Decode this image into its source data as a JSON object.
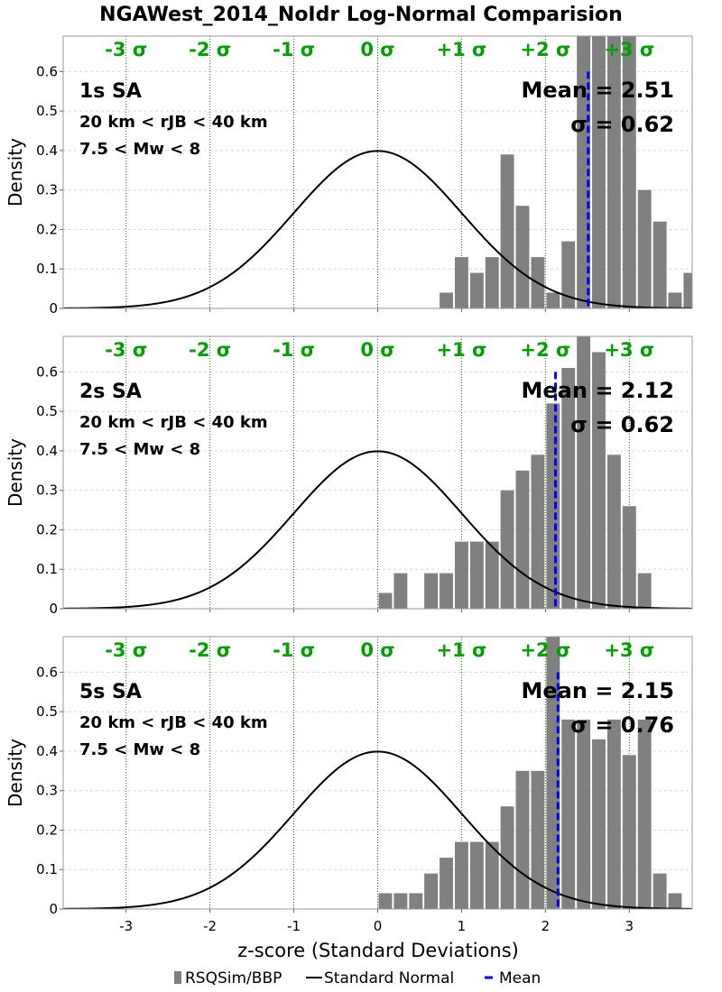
{
  "title": "NGAWest_2014_NoIdr Log-Normal Comparision",
  "sigma_labels": [
    "-3 σ",
    "-2 σ",
    "-1 σ",
    "0 σ",
    "+1 σ",
    "+2 σ",
    "+3 σ"
  ],
  "colors": {
    "bars": "#808080",
    "normal_curve": "#000000",
    "mean_line": "#0000ff",
    "sigma_lines": "#008000",
    "sigma_text": "#00a000",
    "grid": "#d8d8d8"
  },
  "legend": {
    "position": "bottom-center",
    "items": [
      {
        "label": "RSQSim/BBP",
        "kind": "bar",
        "color": "#808080"
      },
      {
        "label": "Standard Normal",
        "kind": "line",
        "color": "#000000"
      },
      {
        "label": "Mean",
        "kind": "dash",
        "color": "#0000ff"
      }
    ]
  },
  "chart_data": [
    {
      "type": "bar",
      "title": "1s SA",
      "annotations": [
        "20 km < rJB < 40 km",
        "7.5 < Mw < 8"
      ],
      "mean_label": "Mean = 2.51",
      "sigma_label": "σ = 0.62",
      "mean": 2.51,
      "ylabel": "Density",
      "xlabel": "",
      "xlim": [
        -3.75,
        3.75
      ],
      "ylim": [
        0,
        0.69
      ],
      "yticks": [
        "0",
        "0.1",
        "0.2",
        "0.3",
        "0.4",
        "0.5",
        "0.6"
      ],
      "grid": true,
      "bin_width": 0.1818,
      "bin_centers": [
        0.818,
        1.0,
        1.182,
        1.364,
        1.545,
        1.727,
        1.909,
        2.091,
        2.273,
        2.455,
        2.636,
        2.818,
        3.0,
        3.182,
        3.364,
        3.545,
        3.727
      ],
      "values": [
        0.04,
        0.13,
        0.09,
        0.13,
        0.39,
        0.26,
        0.13,
        0.04,
        0.17,
        0.69,
        0.69,
        0.69,
        0.69,
        0.3,
        0.22,
        0.04,
        0.09
      ]
    },
    {
      "type": "bar",
      "title": "2s SA",
      "annotations": [
        "20 km < rJB < 40 km",
        "7.5 < Mw < 8"
      ],
      "mean_label": "Mean = 2.12",
      "sigma_label": "σ = 0.62",
      "mean": 2.12,
      "ylabel": "Density",
      "xlabel": "",
      "xlim": [
        -3.75,
        3.75
      ],
      "ylim": [
        0,
        0.69
      ],
      "yticks": [
        "0",
        "0.1",
        "0.2",
        "0.3",
        "0.4",
        "0.5",
        "0.6"
      ],
      "grid": true,
      "bin_width": 0.1818,
      "bin_centers": [
        0.091,
        0.273,
        0.636,
        0.818,
        1.0,
        1.182,
        1.364,
        1.545,
        1.727,
        1.909,
        2.091,
        2.273,
        2.455,
        2.636,
        2.818,
        3.0,
        3.182
      ],
      "values": [
        0.04,
        0.09,
        0.09,
        0.09,
        0.17,
        0.17,
        0.17,
        0.3,
        0.35,
        0.39,
        0.52,
        0.61,
        0.69,
        0.65,
        0.39,
        0.26,
        0.09
      ]
    },
    {
      "type": "bar",
      "title": "5s SA",
      "annotations": [
        "20 km < rJB < 40 km",
        "7.5 < Mw < 8"
      ],
      "mean_label": "Mean = 2.15",
      "sigma_label": "σ = 0.76",
      "mean": 2.15,
      "ylabel": "Density",
      "xlabel": "z-score (Standard Deviations)",
      "xlim": [
        -3.75,
        3.75
      ],
      "ylim": [
        0,
        0.69
      ],
      "yticks": [
        "0",
        "0.1",
        "0.2",
        "0.3",
        "0.4",
        "0.5",
        "0.6"
      ],
      "xticks": [
        "-3",
        "-2",
        "-1",
        "0",
        "1",
        "2",
        "3"
      ],
      "grid": true,
      "bin_width": 0.1818,
      "bin_centers": [
        0.091,
        0.273,
        0.455,
        0.636,
        0.818,
        1.0,
        1.182,
        1.364,
        1.545,
        1.727,
        1.909,
        2.091,
        2.273,
        2.455,
        2.636,
        2.818,
        3.0,
        3.182,
        3.364,
        3.545
      ],
      "values": [
        0.04,
        0.04,
        0.04,
        0.09,
        0.13,
        0.17,
        0.17,
        0.17,
        0.26,
        0.35,
        0.35,
        0.69,
        0.48,
        0.48,
        0.43,
        0.48,
        0.39,
        0.48,
        0.09,
        0.04
      ]
    }
  ]
}
